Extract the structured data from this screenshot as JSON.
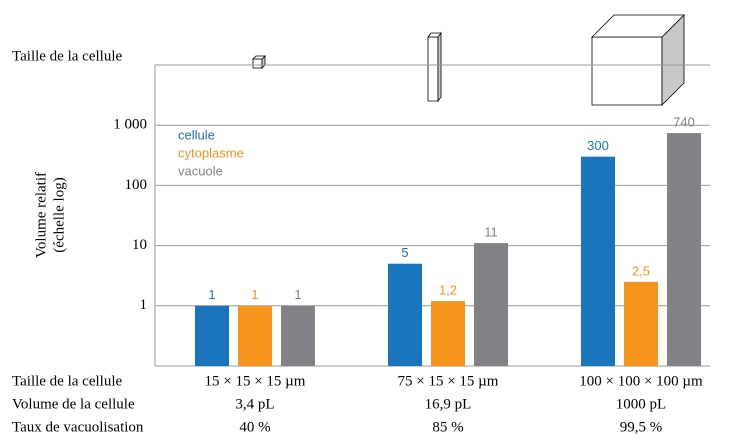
{
  "chart_data": {
    "type": "bar",
    "size_row_label": "Taille de la cellule",
    "y_label": [
      "Volume relatif",
      "(échelle log)"
    ],
    "x_label": "Taille de la cellule",
    "categories": [
      "15 × 15 × 15 µm",
      "75 × 15 × 15 µm",
      "100 × 100 × 100 µm"
    ],
    "series": [
      {
        "name": "cellule",
        "color": "#1b75bc",
        "values": [
          1,
          5,
          300
        ]
      },
      {
        "name": "cytoplasme",
        "color": "#f7941d",
        "values": [
          1,
          1.2,
          2.5
        ],
        "value_labels": [
          "1",
          "1,2",
          "2,5"
        ]
      },
      {
        "name": "vacuole",
        "color": "#808285",
        "values": [
          1,
          11,
          740
        ]
      }
    ],
    "log_scale": true,
    "ylim": [
      0.1,
      10000
    ],
    "yticks": [
      1,
      10,
      100,
      {
        "value": 1000,
        "label": "1 000"
      }
    ],
    "grid": true,
    "table_rows": [
      {
        "label": "Volume de la cellule",
        "values": [
          "3,4 pL",
          "16,9 pL",
          "1000 pL"
        ]
      },
      {
        "label": "Taux de vacuolisation",
        "values": [
          "40 %",
          "85 %",
          "99,5 %"
        ]
      }
    ]
  }
}
